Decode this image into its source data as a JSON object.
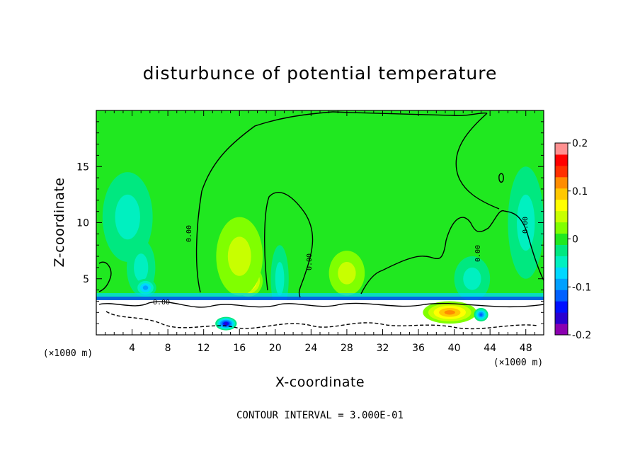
{
  "chart_data": {
    "type": "heatmap",
    "title": "disturbunce of potential temperature",
    "xlabel": "X-coordinate",
    "ylabel": "Z-coordinate",
    "x_unit": "(×1000 m)",
    "z_unit": "(×1000 m)",
    "xlim": [
      0,
      50
    ],
    "ylim": [
      0,
      20
    ],
    "x_ticks": [
      4,
      8,
      12,
      16,
      20,
      24,
      28,
      32,
      36,
      40,
      44,
      48
    ],
    "y_ticks": [
      5,
      10,
      15
    ],
    "colorbar": {
      "range": [
        -0.2,
        0.2
      ],
      "labels": [
        "0.2",
        "0.1",
        "0",
        "-0.1",
        "-0.2"
      ],
      "label_values": [
        0.2,
        0.1,
        0,
        -0.1,
        -0.2
      ],
      "levels": [
        -0.2,
        -0.175,
        -0.15,
        -0.125,
        -0.1,
        -0.075,
        -0.05,
        -0.025,
        0,
        0.025,
        0.05,
        0.075,
        0.1,
        0.125,
        0.15,
        0.175,
        0.2
      ],
      "colors": [
        "#8b00b0",
        "#2a00d0",
        "#0010ff",
        "#0060ff",
        "#00a0ff",
        "#00d8ff",
        "#00f0c0",
        "#00e880",
        "#20e820",
        "#80ff00",
        "#c8ff00",
        "#ffff00",
        "#ffc800",
        "#ff8c00",
        "#ff3000",
        "#ff0000",
        "#ff9090"
      ]
    },
    "contour_label": "0.00",
    "contour_interval_text": "CONTOUR INTERVAL = 3.000E-01",
    "features": [
      {
        "x": 3.5,
        "z": 10.5,
        "value": -0.04,
        "wx": 2.8,
        "wz": 4.0
      },
      {
        "x": 5.0,
        "z": 6.0,
        "value": -0.06,
        "wx": 1.6,
        "wz": 2.5
      },
      {
        "x": 5.5,
        "z": 4.2,
        "value": -0.11,
        "wx": 1.2,
        "wz": 0.8
      },
      {
        "x": 17.0,
        "z": 4.8,
        "value": 0.12,
        "wx": 1.6,
        "wz": 1.4
      },
      {
        "x": 16.0,
        "z": 7.0,
        "value": 0.05,
        "wx": 2.6,
        "wz": 3.5
      },
      {
        "x": 20.5,
        "z": 5.0,
        "value": -0.05,
        "wx": 1.0,
        "wz": 3.0
      },
      {
        "x": 28.0,
        "z": 5.5,
        "value": 0.05,
        "wx": 2.0,
        "wz": 2.0
      },
      {
        "x": 48.0,
        "z": 10.0,
        "value": -0.04,
        "wx": 2.0,
        "wz": 5.0
      },
      {
        "x": 42.0,
        "z": 5.0,
        "value": -0.03,
        "wx": 2.0,
        "wz": 2.0
      },
      {
        "x": 14.5,
        "z": 1.0,
        "value": -0.17,
        "wx": 1.2,
        "wz": 0.6
      },
      {
        "x": 39.5,
        "z": 2.0,
        "value": 0.13,
        "wx": 3.0,
        "wz": 1.0
      },
      {
        "x": 43.0,
        "z": 1.8,
        "value": -0.12,
        "wx": 0.8,
        "wz": 0.6
      }
    ]
  }
}
